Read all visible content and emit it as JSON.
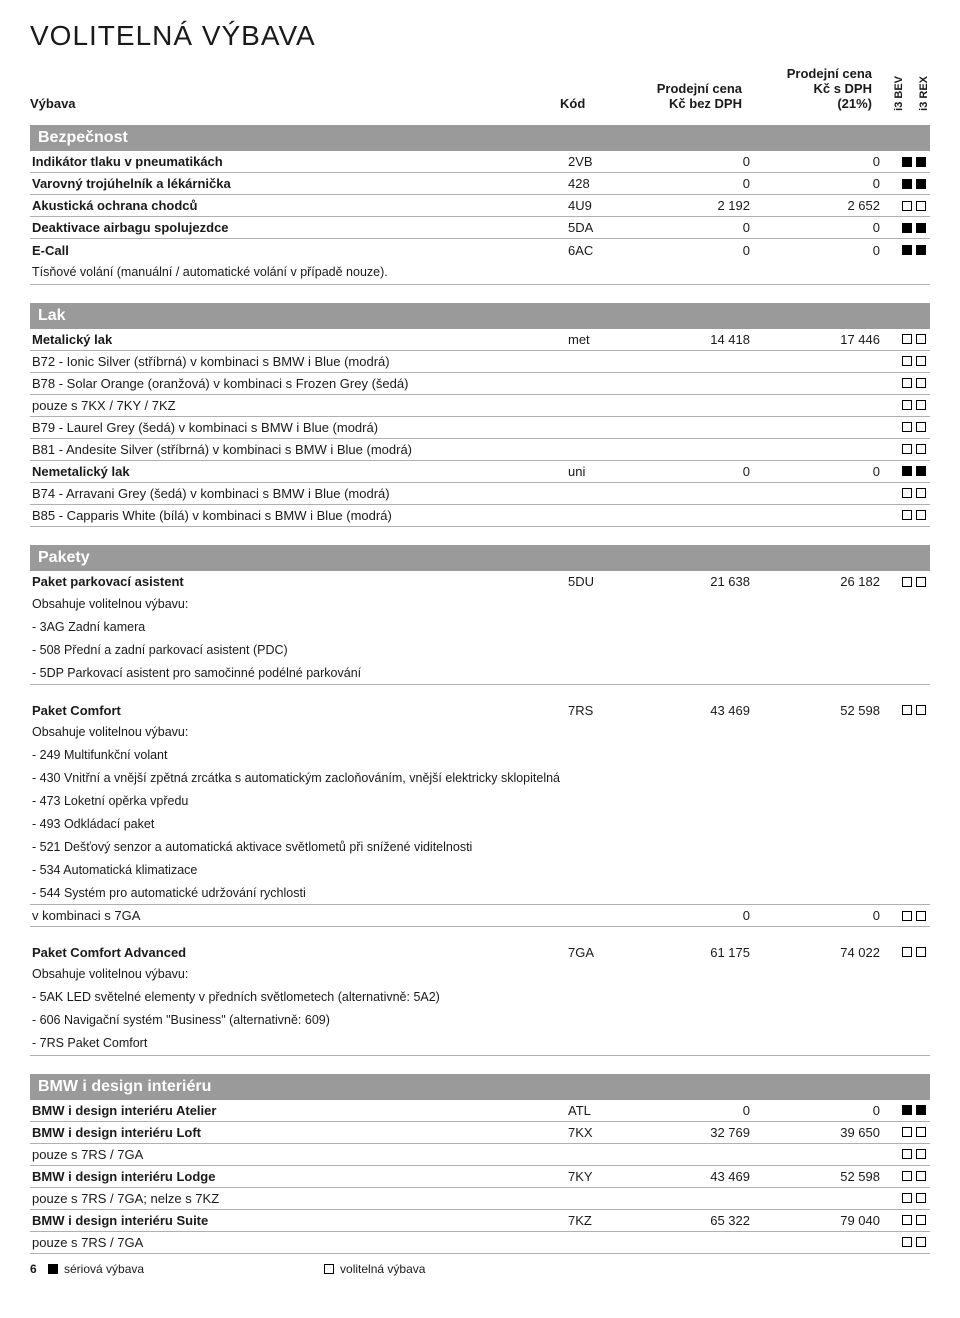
{
  "title": "VOLITELNÁ VÝBAVA",
  "header": {
    "vybava": "Výbava",
    "kod": "Kód",
    "p1_l1": "Prodejní cena",
    "p1_l2": "Kč bez DPH",
    "p2_l1": "Prodejní cena",
    "p2_l2": "Kč s DPH",
    "p2_l3": "(21%)",
    "v1": "i3 BEV",
    "v2": "i3 REX"
  },
  "sec_bezpecnost": "Bezpečnost",
  "bez": {
    "r1": {
      "name": "Indikátor tlaku v pneumatikách",
      "kod": "2VB",
      "p1": "0",
      "p2": "0",
      "i": "ff"
    },
    "r2": {
      "name": "Varovný trojúhelník a lékárnička",
      "kod": "428",
      "p1": "0",
      "p2": "0",
      "i": "ff"
    },
    "r3": {
      "name": "Akustická ochrana chodců",
      "kod": "4U9",
      "p1": "2 192",
      "p2": "2 652",
      "i": "ee"
    },
    "r4": {
      "name": "Deaktivace airbagu spolujezdce",
      "kod": "5DA",
      "p1": "0",
      "p2": "0",
      "i": "ff"
    },
    "r5": {
      "name": "E-Call",
      "kod": "6AC",
      "p1": "0",
      "p2": "0",
      "i": "ff"
    },
    "r5b": "Tísňové volání (manuální / automatické volání v případě nouze)."
  },
  "sec_lak": "Lak",
  "lak": {
    "r1": {
      "name": "Metalický lak",
      "kod": "met",
      "p1": "14 418",
      "p2": "17 446",
      "i": "ee"
    },
    "r2": {
      "name": "B72 - Ionic Silver (stříbrná) v kombinaci s BMW i Blue (modrá)",
      "i": "ee"
    },
    "r3": {
      "name": "B78 - Solar Orange (oranžová) v kombinaci s Frozen Grey (šedá)",
      "i": "ee"
    },
    "r4": {
      "name": "pouze s 7KX / 7KY / 7KZ",
      "i": "ee"
    },
    "r5": {
      "name": "B79 - Laurel Grey (šedá) v kombinaci s BMW i Blue (modrá)",
      "i": "ee"
    },
    "r6": {
      "name": "B81 - Andesite Silver (stříbrná) v kombinaci s BMW i Blue (modrá)",
      "i": "ee"
    },
    "r7": {
      "name": "Nemetalický lak",
      "kod": "uni",
      "p1": "0",
      "p2": "0",
      "i": "ff"
    },
    "r8": {
      "name": "B74 - Arravani Grey (šedá) v kombinaci s BMW i Blue (modrá)",
      "i": "ee"
    },
    "r9": {
      "name": "B85 - Capparis White (bílá) v kombinaci s BMW i Blue (modrá)",
      "i": "ee"
    }
  },
  "sec_pakety": "Pakety",
  "pak": {
    "p1": {
      "name": "Paket parkovací asistent",
      "kod": "5DU",
      "p1": "21 638",
      "p2": "26 182",
      "i": "ee",
      "sub": [
        "Obsahuje volitelnou výbavu:",
        "- 3AG Zadní kamera",
        "- 508 Přední a zadní parkovací asistent (PDC)",
        "- 5DP Parkovací asistent pro samočinné podélné parkování"
      ]
    },
    "p2": {
      "name": "Paket Comfort",
      "kod": "7RS",
      "p1": "43 469",
      "p2": "52 598",
      "i": "ee",
      "sub": [
        "Obsahuje volitelnou výbavu:",
        "- 249 Multifunkční volant",
        "- 430 Vnitřní a vnější zpětná zrcátka s automatickým zacloňováním, vnější elektricky sklopitelná",
        "- 473 Loketní opěrka vpředu",
        "- 493 Odkládací paket",
        "- 521 Dešťový senzor a automatická aktivace světlometů při snížené viditelnosti",
        "- 534 Automatická klimatizace",
        "- 544 Systém pro automatické udržování rychlosti"
      ],
      "extra": {
        "name": "v kombinaci s 7GA",
        "p1": "0",
        "p2": "0",
        "i": "ee"
      }
    },
    "p3": {
      "name": "Paket Comfort Advanced",
      "kod": "7GA",
      "p1": "61 175",
      "p2": "74 022",
      "i": "ee",
      "sub": [
        "Obsahuje volitelnou výbavu:",
        "- 5AK LED světelné elementy v předních světlometech (alternativně: 5A2)",
        "- 606 Navigační systém \"Business\" (alternativně: 609)",
        "- 7RS Paket Comfort"
      ]
    }
  },
  "sec_design": "BMW i design interiéru",
  "des": {
    "r1": {
      "name": "BMW i design interiéru Atelier",
      "kod": "ATL",
      "p1": "0",
      "p2": "0",
      "i": "ff"
    },
    "r2": {
      "name": "BMW i design interiéru Loft",
      "kod": "7KX",
      "p1": "32 769",
      "p2": "39 650",
      "i": "ee"
    },
    "r3": {
      "name": "pouze s 7RS / 7GA",
      "i": "ee"
    },
    "r4": {
      "name": "BMW i design interiéru Lodge",
      "kod": "7KY",
      "p1": "43 469",
      "p2": "52 598",
      "i": "ee"
    },
    "r5": {
      "name": "pouze s 7RS / 7GA; nelze s 7KZ",
      "i": "ee"
    },
    "r6": {
      "name": "BMW i design interiéru Suite",
      "kod": "7KZ",
      "p1": "65 322",
      "p2": "79 040",
      "i": "ee"
    },
    "r7": {
      "name": "pouze s 7RS / 7GA",
      "i": "ee"
    }
  },
  "footer": {
    "page": "6",
    "serial": "sériová výbava",
    "optional": "volitelná výbava"
  }
}
